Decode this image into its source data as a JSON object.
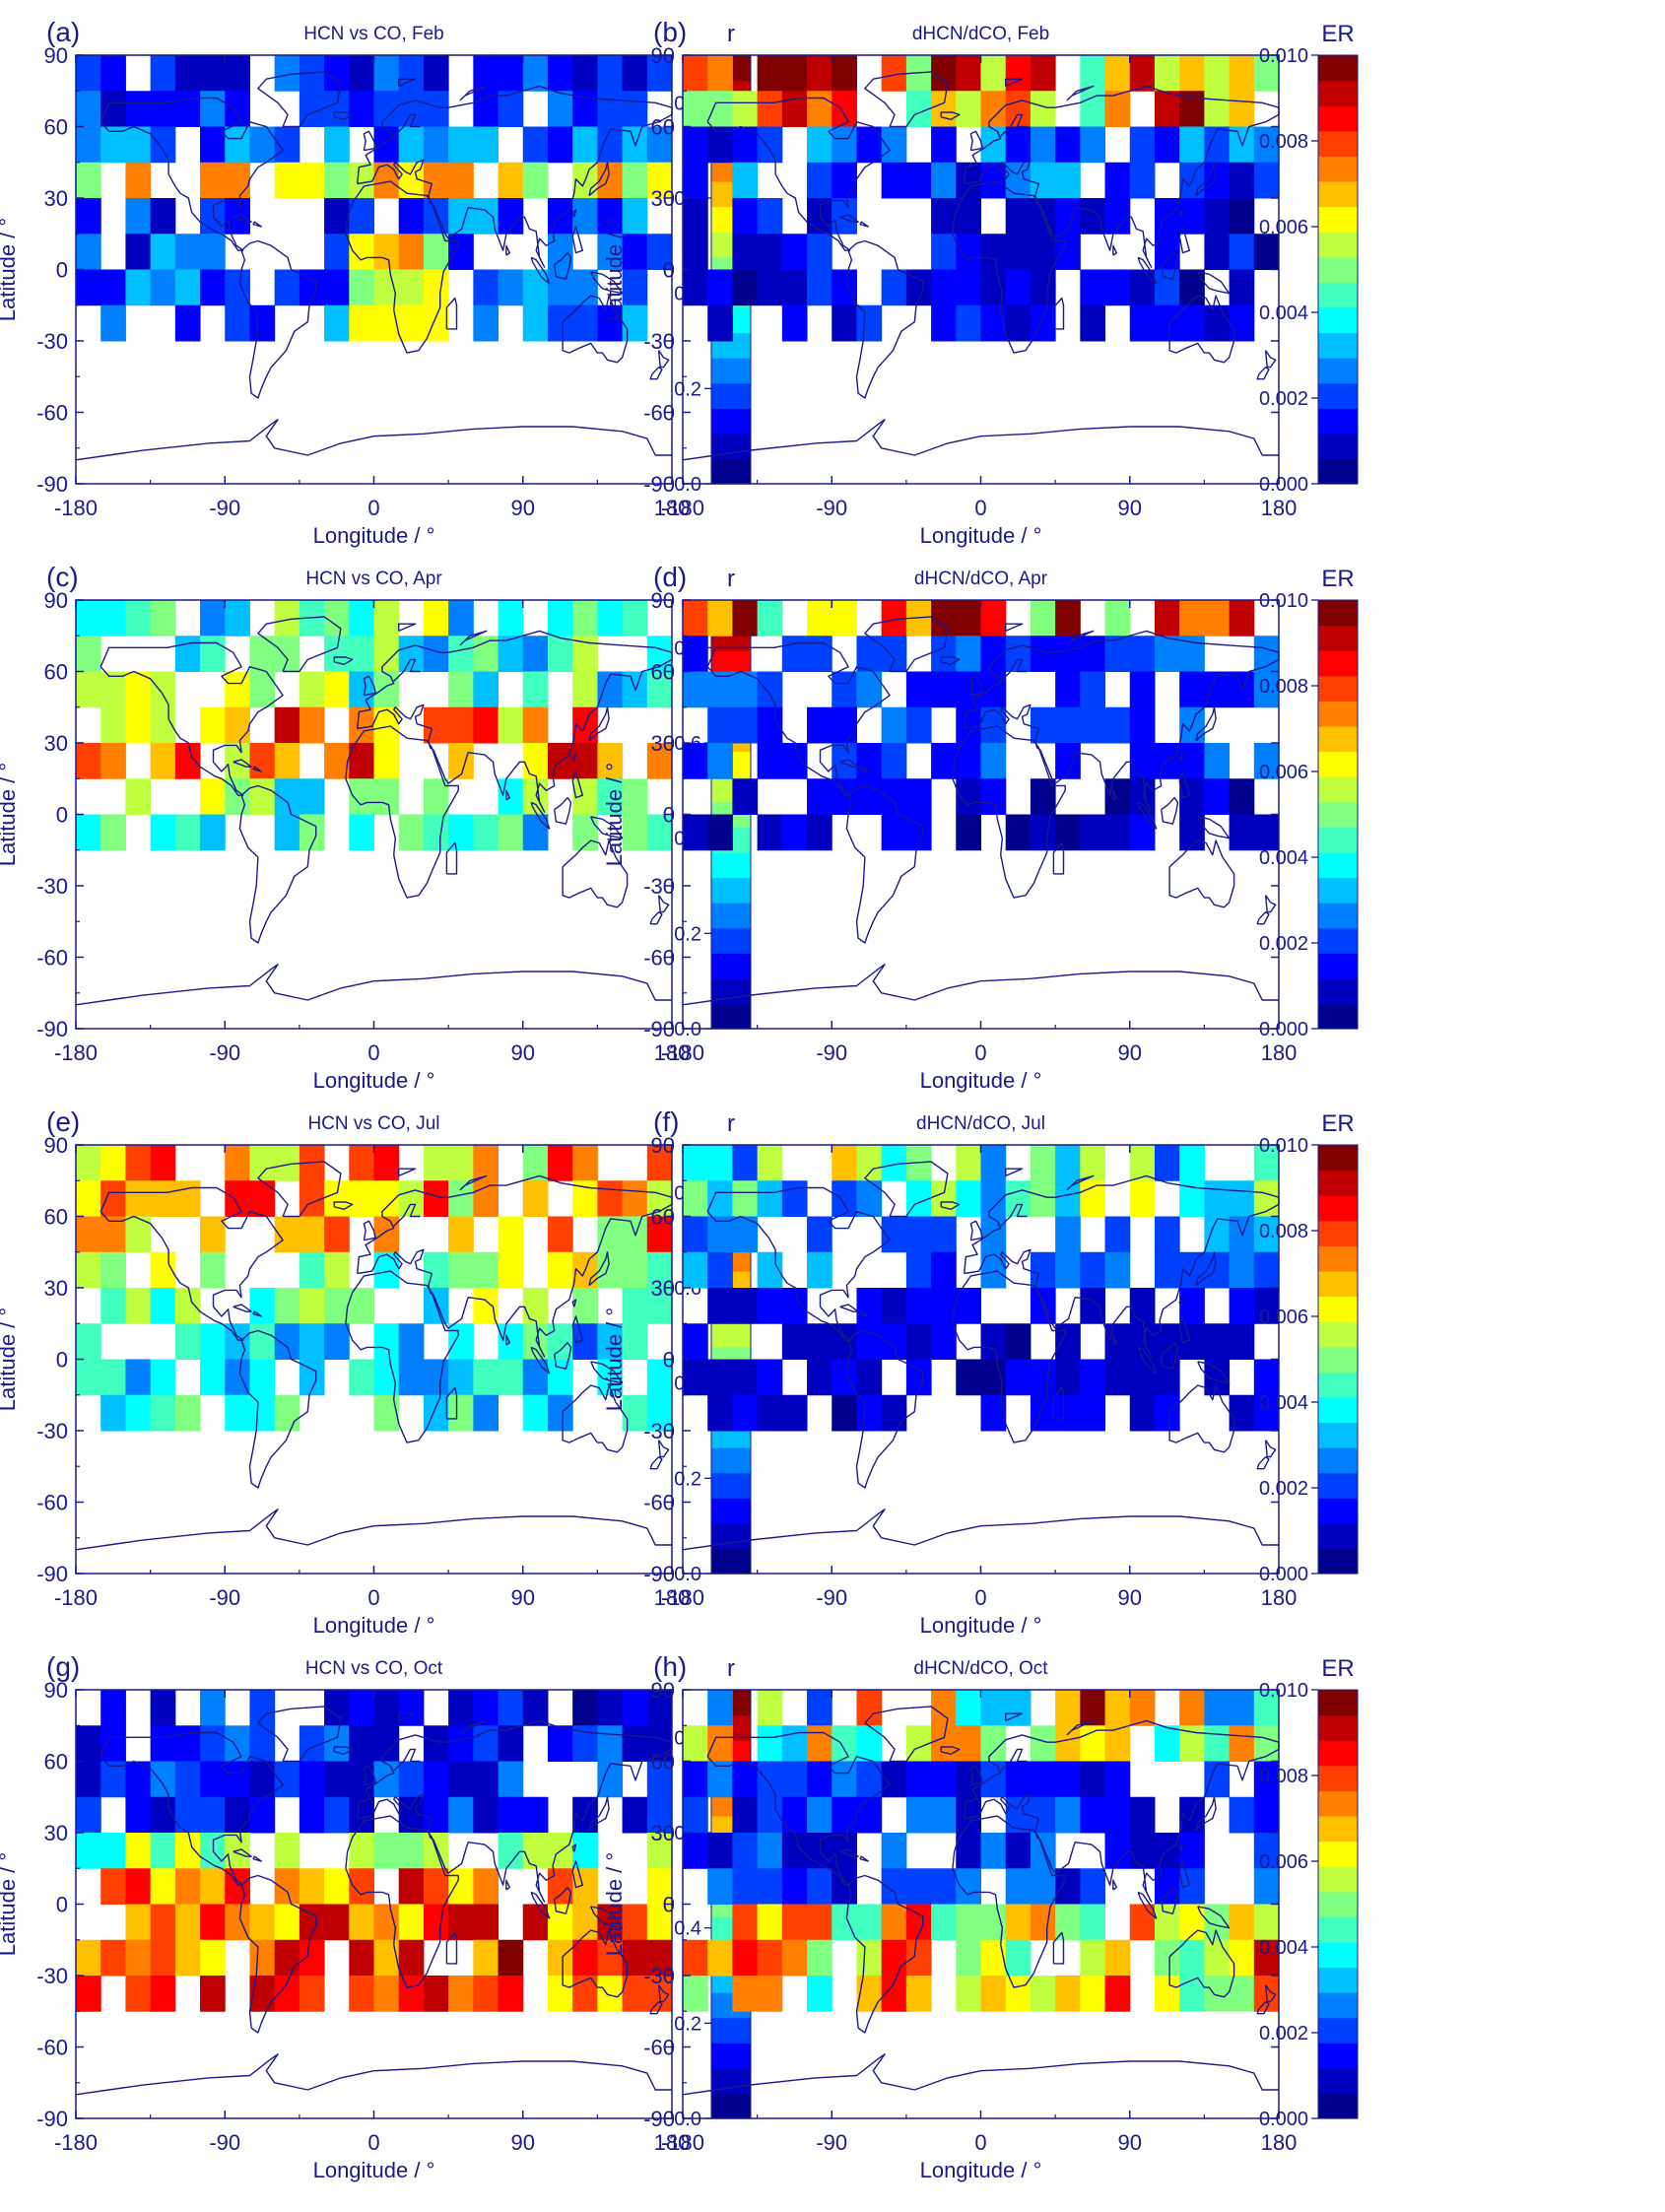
{
  "colors": {
    "axis": "#1a1a8c",
    "text": "#1a1a8c",
    "coast": "#1a1a8c",
    "colormap": [
      "#00008f",
      "#0000c0",
      "#0000ff",
      "#0040ff",
      "#0080ff",
      "#00c0ff",
      "#00ffff",
      "#40ffbf",
      "#80ff80",
      "#bfff40",
      "#ffff00",
      "#ffc000",
      "#ff8000",
      "#ff4000",
      "#ff0000",
      "#c00000",
      "#800000"
    ]
  },
  "chart_data": [
    {
      "type": "heatmap",
      "panel_label": "(a)",
      "title": "HCN vs CO, Feb",
      "xlabel": "Longitude / °",
      "ylabel": "Latitude / °",
      "xlim": [
        -180,
        180
      ],
      "ylim": [
        -90,
        90
      ],
      "xticks": [
        "-180",
        "-90",
        "0",
        "90",
        "180"
      ],
      "yticks": [
        "90",
        "60",
        "30",
        "0",
        "-30",
        "-60",
        "-90"
      ],
      "colorbar": {
        "label": "r",
        "range": [
          0,
          0.9
        ],
        "ticks": [
          "0.0",
          "0.2",
          "0.4",
          "0.6",
          "0.8"
        ]
      },
      "season": "feb",
      "metric": "r"
    },
    {
      "type": "heatmap",
      "panel_label": "(b)",
      "title": "dHCN/dCO, Feb",
      "xlabel": "Longitude / °",
      "ylabel": "Latitude / °",
      "xlim": [
        -180,
        180
      ],
      "ylim": [
        -90,
        90
      ],
      "xticks": [
        "-180",
        "-90",
        "0",
        "90",
        "180"
      ],
      "yticks": [
        "90",
        "60",
        "30",
        "0",
        "-30",
        "-60",
        "-90"
      ],
      "colorbar": {
        "label": "ER",
        "range": [
          0,
          0.01
        ],
        "ticks": [
          "0.000",
          "0.002",
          "0.004",
          "0.006",
          "0.008",
          "0.010"
        ]
      },
      "season": "feb",
      "metric": "er"
    },
    {
      "type": "heatmap",
      "panel_label": "(c)",
      "title": "HCN vs CO, Apr",
      "xlabel": "Longitude / °",
      "ylabel": "Latitude / °",
      "xlim": [
        -180,
        180
      ],
      "ylim": [
        -90,
        90
      ],
      "xticks": [
        "-180",
        "-90",
        "0",
        "90",
        "180"
      ],
      "yticks": [
        "90",
        "60",
        "30",
        "0",
        "-30",
        "-60",
        "-90"
      ],
      "colorbar": {
        "label": "r",
        "range": [
          0,
          0.9
        ],
        "ticks": [
          "0.0",
          "0.2",
          "0.4",
          "0.6",
          "0.8"
        ]
      },
      "season": "apr",
      "metric": "r"
    },
    {
      "type": "heatmap",
      "panel_label": "(d)",
      "title": "dHCN/dCO, Apr",
      "xlabel": "Longitude / °",
      "ylabel": "Latitude / °",
      "xlim": [
        -180,
        180
      ],
      "ylim": [
        -90,
        90
      ],
      "xticks": [
        "-180",
        "-90",
        "0",
        "90",
        "180"
      ],
      "yticks": [
        "90",
        "60",
        "30",
        "0",
        "-30",
        "-60",
        "-90"
      ],
      "colorbar": {
        "label": "ER",
        "range": [
          0,
          0.01
        ],
        "ticks": [
          "0.000",
          "0.002",
          "0.004",
          "0.006",
          "0.008",
          "0.010"
        ]
      },
      "season": "apr",
      "metric": "er"
    },
    {
      "type": "heatmap",
      "panel_label": "(e)",
      "title": "HCN vs CO, Jul",
      "xlabel": "Longitude / °",
      "ylabel": "Latitude / °",
      "xlim": [
        -180,
        180
      ],
      "ylim": [
        -90,
        90
      ],
      "xticks": [
        "-180",
        "-90",
        "0",
        "90",
        "180"
      ],
      "yticks": [
        "90",
        "60",
        "30",
        "0",
        "-30",
        "-60",
        "-90"
      ],
      "colorbar": {
        "label": "r",
        "range": [
          0,
          0.9
        ],
        "ticks": [
          "0.0",
          "0.2",
          "0.4",
          "0.6",
          "0.8"
        ]
      },
      "season": "jul",
      "metric": "r"
    },
    {
      "type": "heatmap",
      "panel_label": "(f)",
      "title": "dHCN/dCO, Jul",
      "xlabel": "Longitude / °",
      "ylabel": "Latitude / °",
      "xlim": [
        -180,
        180
      ],
      "ylim": [
        -90,
        90
      ],
      "xticks": [
        "-180",
        "-90",
        "0",
        "90",
        "180"
      ],
      "yticks": [
        "90",
        "60",
        "30",
        "0",
        "-30",
        "-60",
        "-90"
      ],
      "colorbar": {
        "label": "ER",
        "range": [
          0,
          0.01
        ],
        "ticks": [
          "0.000",
          "0.002",
          "0.004",
          "0.006",
          "0.008",
          "0.010"
        ]
      },
      "season": "jul",
      "metric": "er"
    },
    {
      "type": "heatmap",
      "panel_label": "(g)",
      "title": "HCN vs CO, Oct",
      "xlabel": "Longitude / °",
      "ylabel": "Latitude / °",
      "xlim": [
        -180,
        180
      ],
      "ylim": [
        -90,
        90
      ],
      "xticks": [
        "-180",
        "-90",
        "0",
        "90",
        "180"
      ],
      "yticks": [
        "90",
        "60",
        "30",
        "0",
        "-30",
        "-60",
        "-90"
      ],
      "colorbar": {
        "label": "r",
        "range": [
          0,
          0.9
        ],
        "ticks": [
          "0.0",
          "0.2",
          "0.4",
          "0.6",
          "0.8"
        ]
      },
      "season": "oct",
      "metric": "r"
    },
    {
      "type": "heatmap",
      "panel_label": "(h)",
      "title": "dHCN/dCO, Oct",
      "xlabel": "Longitude / °",
      "ylabel": "Latitude / °",
      "xlim": [
        -180,
        180
      ],
      "ylim": [
        -90,
        90
      ],
      "xticks": [
        "-180",
        "-90",
        "0",
        "90",
        "180"
      ],
      "yticks": [
        "90",
        "60",
        "30",
        "0",
        "-30",
        "-60",
        "-90"
      ],
      "colorbar": {
        "label": "ER",
        "range": [
          0,
          0.01
        ],
        "ticks": [
          "0.000",
          "0.002",
          "0.004",
          "0.006",
          "0.008",
          "0.010"
        ]
      },
      "season": "oct",
      "metric": "er"
    }
  ]
}
